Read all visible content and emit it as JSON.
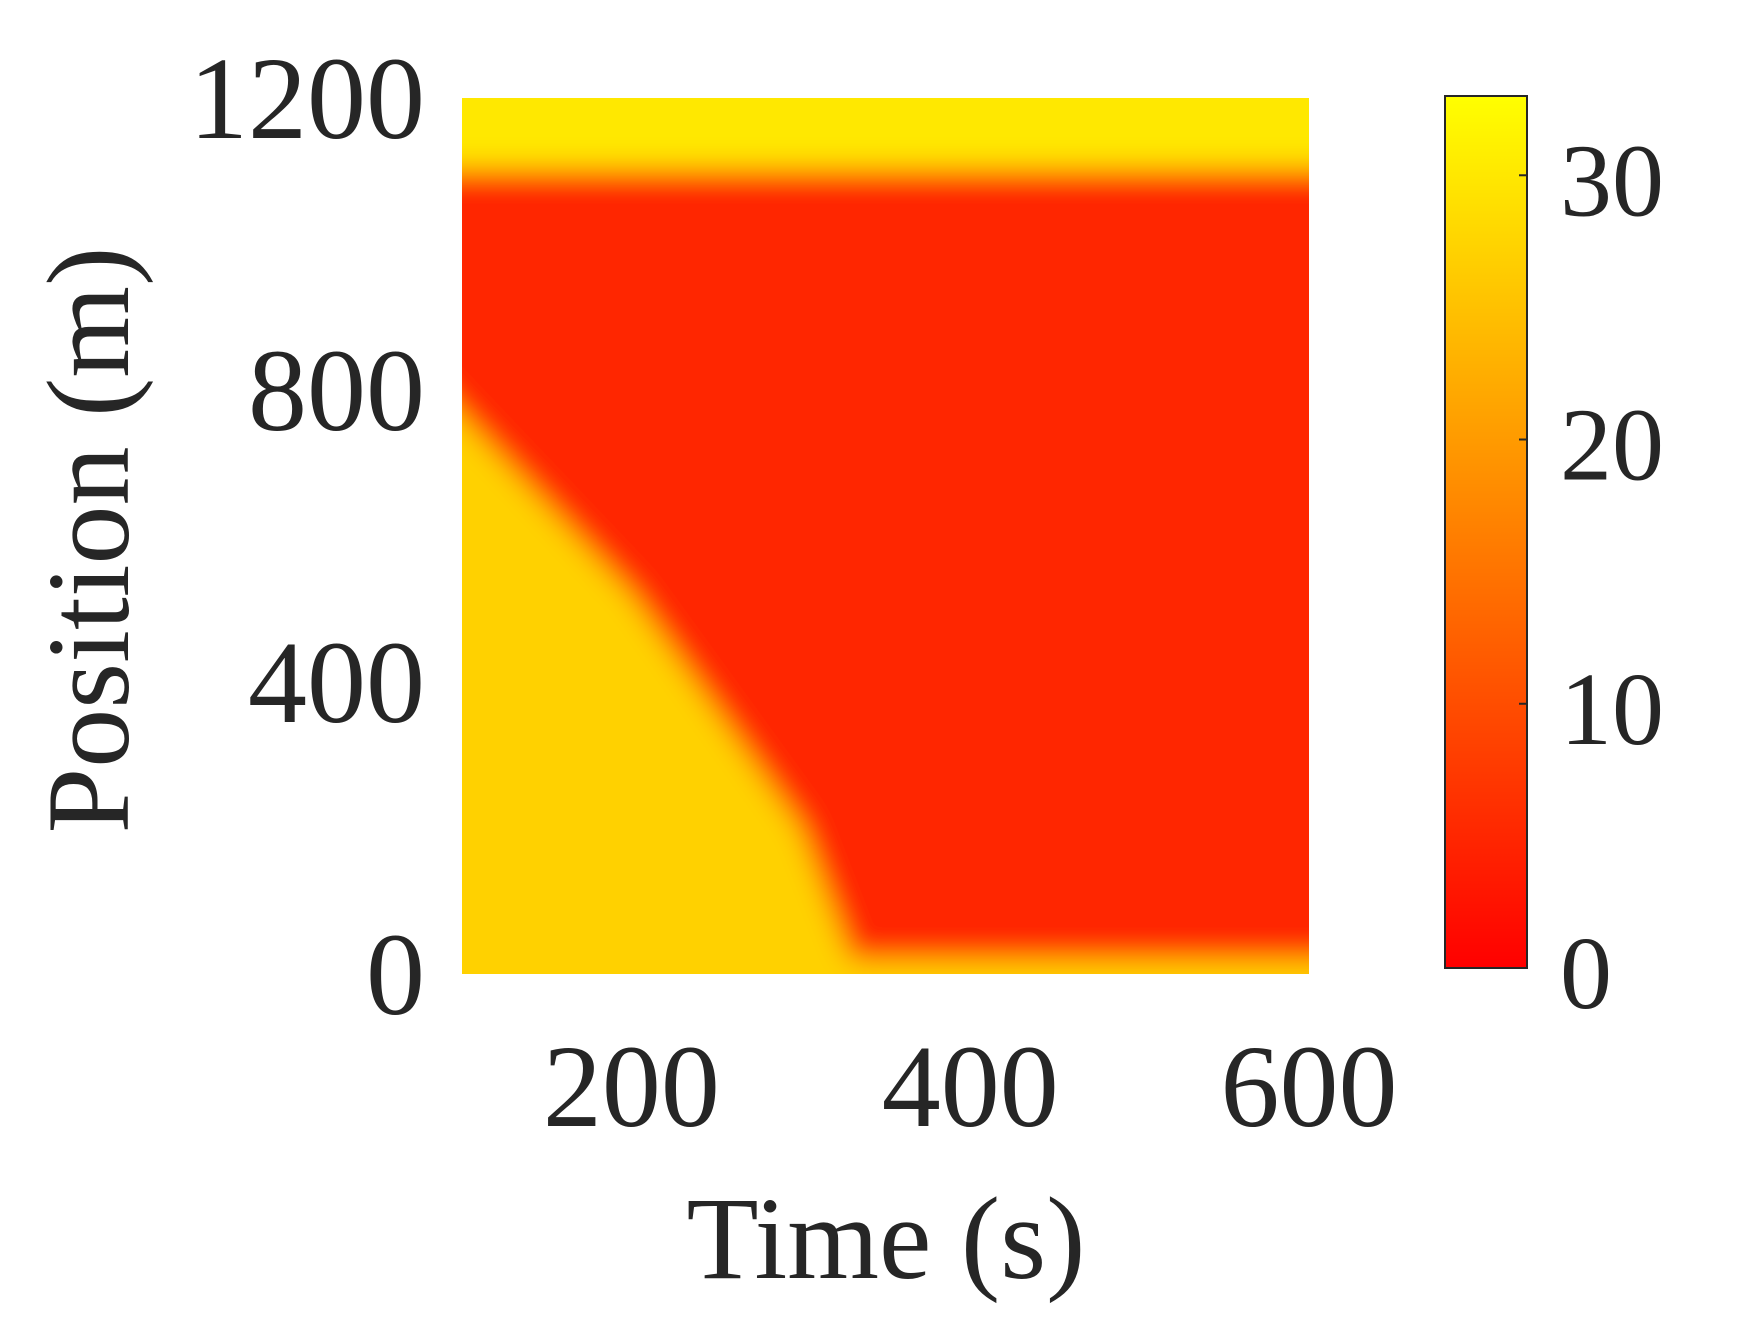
{
  "chart_data": {
    "type": "heatmap",
    "title": "",
    "xlabel": "Time (s)",
    "ylabel": "Position (m)",
    "xlim": [
      100,
      600
    ],
    "ylim": [
      0,
      1200
    ],
    "x_ticks": [
      200,
      400,
      600
    ],
    "y_ticks": [
      0,
      400,
      800,
      1200
    ],
    "colorbar": {
      "colormap": "autumn",
      "min": 0,
      "max": 33,
      "ticks": [
        0,
        10,
        20,
        30
      ],
      "stops": [
        {
          "value": 0,
          "color": "#ff0000"
        },
        {
          "value": 33,
          "color": "#ffff00"
        }
      ]
    },
    "grid": false,
    "series": [
      {
        "values_note_free": true,
        "x": [
          100,
          200,
          300,
          330,
          400,
          500,
          600
        ],
        "congested_band_top_m": [
          1100,
          1100,
          1100,
          1100,
          1100,
          1100,
          1100
        ],
        "free_flow_top_m": [
          1200,
          1200,
          1200,
          1200,
          1200,
          1200,
          1200
        ],
        "jam_front_lower_edge_m": [
          850,
          520,
          200,
          0,
          0,
          0,
          0
        ],
        "speed_free_flow": 27,
        "speed_jam": 5,
        "speed_top_band": 30
      }
    ]
  }
}
